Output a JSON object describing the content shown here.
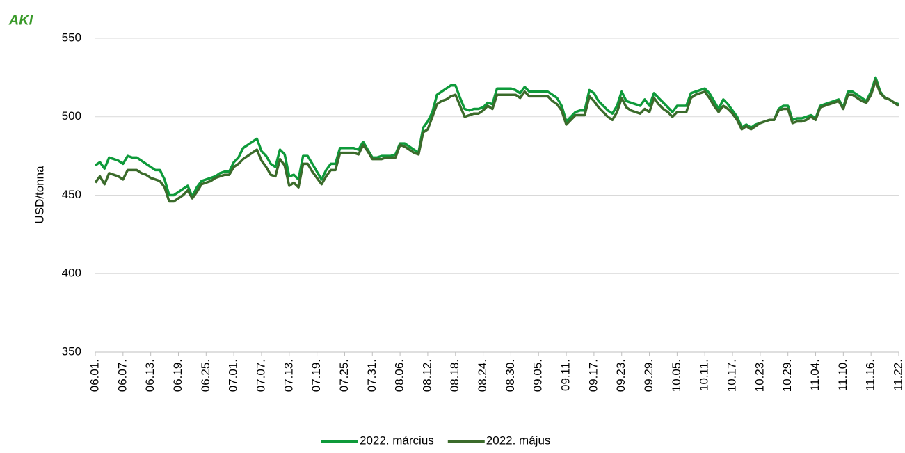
{
  "chart_data": {
    "type": "line",
    "logo": "AKI",
    "y_label": "USD/tonna",
    "categories": [
      "06.01.",
      null,
      null,
      null,
      null,
      null,
      "06.07.",
      null,
      null,
      null,
      null,
      null,
      "06.13.",
      null,
      null,
      null,
      null,
      null,
      "06.19.",
      null,
      null,
      null,
      null,
      null,
      "06.25.",
      null,
      null,
      null,
      null,
      null,
      "07.01.",
      null,
      null,
      null,
      null,
      null,
      "07.07.",
      null,
      null,
      null,
      null,
      null,
      "07.13.",
      null,
      null,
      null,
      null,
      null,
      "07.19.",
      null,
      null,
      null,
      null,
      null,
      "07.25.",
      null,
      null,
      null,
      null,
      null,
      "07.31.",
      null,
      null,
      null,
      null,
      null,
      "08.06.",
      null,
      null,
      null,
      null,
      null,
      "08.12.",
      null,
      null,
      null,
      null,
      null,
      "08.18.",
      null,
      null,
      null,
      null,
      null,
      "08.24.",
      null,
      null,
      null,
      null,
      null,
      "08.30.",
      null,
      null,
      null,
      null,
      null,
      "09.05.",
      null,
      null,
      null,
      null,
      null,
      "09.11.",
      null,
      null,
      null,
      null,
      null,
      "09.17.",
      null,
      null,
      null,
      null,
      null,
      "09.23.",
      null,
      null,
      null,
      null,
      null,
      "09.29.",
      null,
      null,
      null,
      null,
      null,
      "10.05.",
      null,
      null,
      null,
      null,
      null,
      "10.11.",
      null,
      null,
      null,
      null,
      null,
      "10.17.",
      null,
      null,
      null,
      null,
      null,
      "10.23.",
      null,
      null,
      null,
      null,
      null,
      "10.29.",
      null,
      null,
      null,
      null,
      null,
      "11.04.",
      null,
      null,
      null,
      null,
      null,
      "11.10.",
      null,
      null,
      null,
      null,
      null,
      "11.16.",
      null,
      null,
      null,
      null,
      null,
      "11.22."
    ],
    "series": [
      {
        "name": "2022. március",
        "color": "#0e9a3a",
        "values": [
          469,
          471,
          467,
          474,
          473,
          472,
          470,
          475,
          474,
          474,
          472,
          470,
          468,
          466,
          466,
          460,
          450,
          450,
          452,
          454,
          456,
          449,
          455,
          459,
          460,
          461,
          462,
          464,
          465,
          465,
          471,
          474,
          480,
          482,
          484,
          486,
          478,
          475,
          470,
          468,
          479,
          476,
          462,
          463,
          460,
          475,
          475,
          470,
          465,
          460,
          466,
          470,
          470,
          480,
          480,
          480,
          480,
          479,
          484,
          479,
          474,
          474,
          475,
          475,
          475,
          476,
          483,
          483,
          481,
          479,
          477,
          493,
          497,
          503,
          514,
          516,
          518,
          520,
          520,
          512,
          505,
          504,
          505,
          505,
          506,
          509,
          508,
          518,
          518,
          518,
          518,
          517,
          515,
          519,
          516,
          516,
          516,
          516,
          516,
          514,
          512,
          507,
          497,
          500,
          503,
          504,
          504,
          517,
          515,
          510,
          507,
          504,
          502,
          507,
          516,
          510,
          509,
          508,
          507,
          511,
          507,
          515,
          512,
          509,
          506,
          503,
          507,
          507,
          507,
          515,
          516,
          517,
          518,
          515,
          510,
          505,
          511,
          508,
          504,
          500,
          493,
          495,
          493,
          495,
          496,
          497,
          498,
          498,
          505,
          507,
          507,
          498,
          499,
          499,
          500,
          501,
          499,
          507,
          508,
          509,
          510,
          511,
          506,
          516,
          516,
          514,
          512,
          510,
          516,
          525,
          516,
          512,
          511,
          509,
          508
        ]
      },
      {
        "name": "2022. május",
        "color": "#3b6b2b",
        "values": [
          458,
          462,
          457,
          464,
          463,
          462,
          460,
          466,
          466,
          466,
          464,
          463,
          461,
          460,
          459,
          455,
          446,
          446,
          448,
          450,
          453,
          448,
          452,
          457,
          458,
          459,
          461,
          462,
          463,
          463,
          468,
          470,
          473,
          475,
          477,
          479,
          472,
          468,
          463,
          462,
          473,
          469,
          456,
          458,
          455,
          470,
          470,
          465,
          461,
          457,
          462,
          466,
          466,
          477,
          477,
          477,
          477,
          476,
          482,
          478,
          473,
          473,
          473,
          474,
          474,
          474,
          482,
          481,
          479,
          477,
          476,
          490,
          492,
          500,
          508,
          510,
          511,
          513,
          514,
          507,
          500,
          501,
          502,
          502,
          504,
          507,
          505,
          514,
          514,
          514,
          514,
          514,
          512,
          516,
          513,
          513,
          513,
          513,
          513,
          510,
          508,
          504,
          495,
          498,
          501,
          501,
          501,
          513,
          510,
          506,
          503,
          500,
          498,
          503,
          512,
          506,
          504,
          503,
          502,
          505,
          503,
          512,
          508,
          505,
          503,
          500,
          503,
          503,
          503,
          512,
          514,
          515,
          516,
          512,
          507,
          503,
          507,
          505,
          502,
          498,
          492,
          494,
          492,
          494,
          496,
          497,
          498,
          498,
          504,
          505,
          505,
          496,
          497,
          497,
          498,
          500,
          498,
          506,
          507,
          508,
          509,
          510,
          505,
          514,
          514,
          512,
          510,
          509,
          514,
          523,
          515,
          512,
          511,
          509,
          507
        ]
      }
    ],
    "ylim": [
      350,
      550
    ],
    "yticks": [
      350,
      400,
      450,
      500,
      550
    ],
    "grid": true,
    "legend": "bottom"
  }
}
